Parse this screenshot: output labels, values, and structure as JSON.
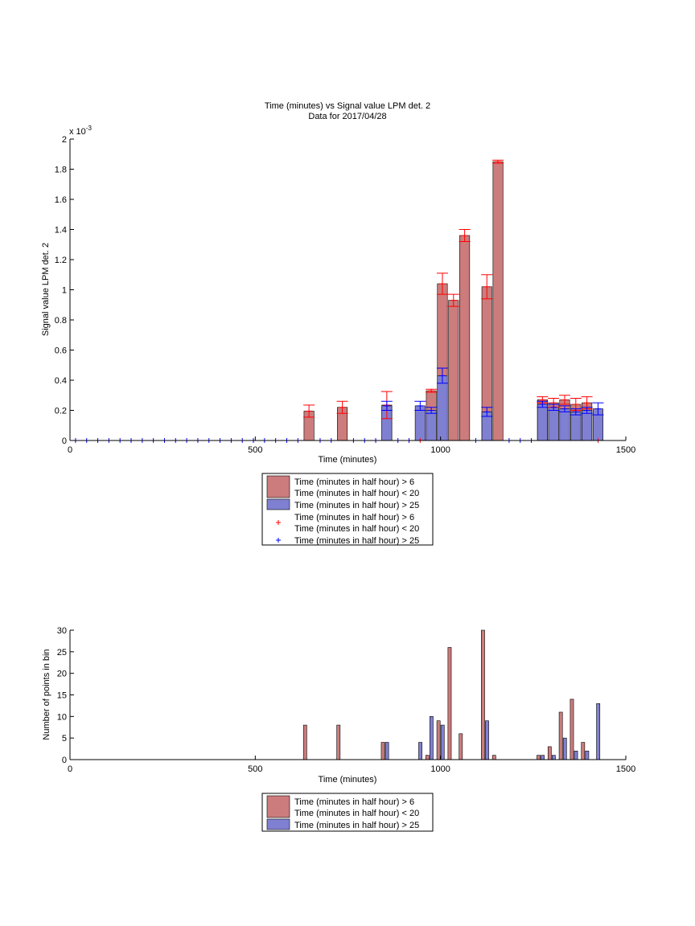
{
  "figure": {
    "title_line1": "Time (minutes) vs Signal value LPM det. 2",
    "title_line2": "Data for 2017/04/28",
    "top_axis_exponent_base": "x 10",
    "top_axis_exponent_power": "-3"
  },
  "colors": {
    "series_red_fill": "#cc7c7c",
    "series_blue_fill": "#8080d2",
    "error_red": "#ff0000",
    "error_blue": "#0000ff",
    "axis": "#000000"
  },
  "chart_data": [
    {
      "type": "bar",
      "xlabel": "Time (minutes)",
      "ylabel": "Signal value LPM det. 2",
      "xlim": [
        0,
        1500
      ],
      "ylim": [
        0,
        0.002
      ],
      "x_ticks": [
        0,
        500,
        1000,
        1500
      ],
      "x_tick_labels": [
        "0",
        "500",
        "1000",
        "1500"
      ],
      "y_ticks": [
        0,
        0.0002,
        0.0004,
        0.0006,
        0.0008,
        0.001,
        0.0012,
        0.0014,
        0.0016,
        0.0018,
        0.002
      ],
      "y_tick_labels": [
        "0",
        "0.2",
        "0.4",
        "0.6",
        "0.8",
        "1",
        "1.2",
        "1.4",
        "1.6",
        "1.8",
        "2"
      ],
      "bar_width": 27,
      "grid": false,
      "legend_position": "below",
      "legend": [
        "Time (minutes in half hour) > 6\nTime (minutes in half hour) < 20",
        "Time (minutes in half hour) > 25",
        "Time (minutes in half hour) > 6\nTime (minutes in half hour) < 20",
        "Time (minutes in half hour) > 25"
      ],
      "series": [
        {
          "name": "Time (minutes in half hour) > 6\nTime (minutes in half hour) < 20",
          "x": [
            645,
            735,
            855,
            975,
            1005,
            1035,
            1065,
            1125,
            1155,
            1275,
            1305,
            1335,
            1365,
            1395
          ],
          "values": [
            0.000195,
            0.00022,
            0.000235,
            0.00033,
            0.00104,
            0.00093,
            0.00136,
            0.00102,
            0.00185,
            0.00027,
            0.00025,
            0.00027,
            0.00024,
            0.00025
          ],
          "error": [
            4e-05,
            4e-05,
            9e-05,
            1e-05,
            7e-05,
            4e-05,
            4e-05,
            8e-05,
            1e-05,
            2e-05,
            3e-05,
            3e-05,
            4e-05,
            4e-05
          ]
        },
        {
          "name": "Time (minutes in half hour) > 25",
          "x": [
            855,
            945,
            975,
            1005,
            1125,
            1275,
            1305,
            1335,
            1365,
            1395,
            1425
          ],
          "values": [
            0.00023,
            0.00023,
            0.0002,
            0.00043,
            0.00019,
            0.00024,
            0.00022,
            0.00021,
            0.00019,
            0.0002,
            0.00021
          ],
          "error": [
            3e-05,
            3e-05,
            2e-05,
            5e-05,
            3e-05,
            2e-05,
            2e-05,
            2e-05,
            2e-05,
            2e-05,
            4e-05
          ]
        },
        {
          "name": "Time (minutes in half hour) > 6\nTime (minutes in half hour) < 20",
          "marker": "+",
          "x": [
            945,
            1425
          ],
          "values": [
            0,
            0
          ]
        },
        {
          "name": "Time (minutes in half hour) > 25",
          "marker": "+",
          "x": [
            15,
            45,
            75,
            105,
            135,
            165,
            195,
            225,
            255,
            285,
            315,
            345,
            375,
            405,
            435,
            465,
            495,
            525,
            555,
            585,
            615,
            675,
            705,
            765,
            795,
            825,
            885,
            915,
            1095,
            1185,
            1215,
            1245
          ],
          "values": [
            0,
            0,
            0,
            0,
            0,
            0,
            0,
            0,
            0,
            0,
            0,
            0,
            0,
            0,
            0,
            0,
            0,
            0,
            0,
            0,
            0,
            0,
            0,
            0,
            0,
            0,
            0,
            0,
            0,
            0,
            0,
            0
          ]
        }
      ]
    },
    {
      "type": "bar",
      "xlabel": "Time (minutes)",
      "ylabel": "Number of points in bin",
      "xlim": [
        0,
        1500
      ],
      "ylim": [
        0,
        30
      ],
      "x_ticks": [
        0,
        500,
        1000,
        1500
      ],
      "x_tick_labels": [
        "0",
        "500",
        "1000",
        "1500"
      ],
      "y_ticks": [
        0,
        5,
        10,
        15,
        20,
        25,
        30
      ],
      "y_tick_labels": [
        "0",
        "5",
        "10",
        "15",
        "20",
        "25",
        "30"
      ],
      "bar_width": 11,
      "grid": false,
      "legend_position": "below",
      "legend": [
        "Time (minutes in half hour) > 6\nTime (minutes in half hour) < 20",
        "Time (minutes in half hour) > 25"
      ],
      "series": [
        {
          "name": "Time (minutes in half hour) > 6\nTime (minutes in half hour) < 20",
          "x": [
            640,
            730,
            850,
            970,
            1000,
            1030,
            1060,
            1120,
            1150,
            1270,
            1300,
            1330,
            1360,
            1390
          ],
          "values": [
            8,
            8,
            4,
            1,
            9,
            26,
            6,
            30,
            1,
            1,
            3,
            11,
            14,
            4
          ]
        },
        {
          "name": "Time (minutes in half hour) > 25",
          "x": [
            850,
            940,
            970,
            1000,
            1120,
            1270,
            1300,
            1330,
            1360,
            1390,
            1420
          ],
          "values": [
            4,
            4,
            10,
            8,
            9,
            1,
            1,
            5,
            2,
            2,
            13
          ]
        }
      ]
    }
  ]
}
